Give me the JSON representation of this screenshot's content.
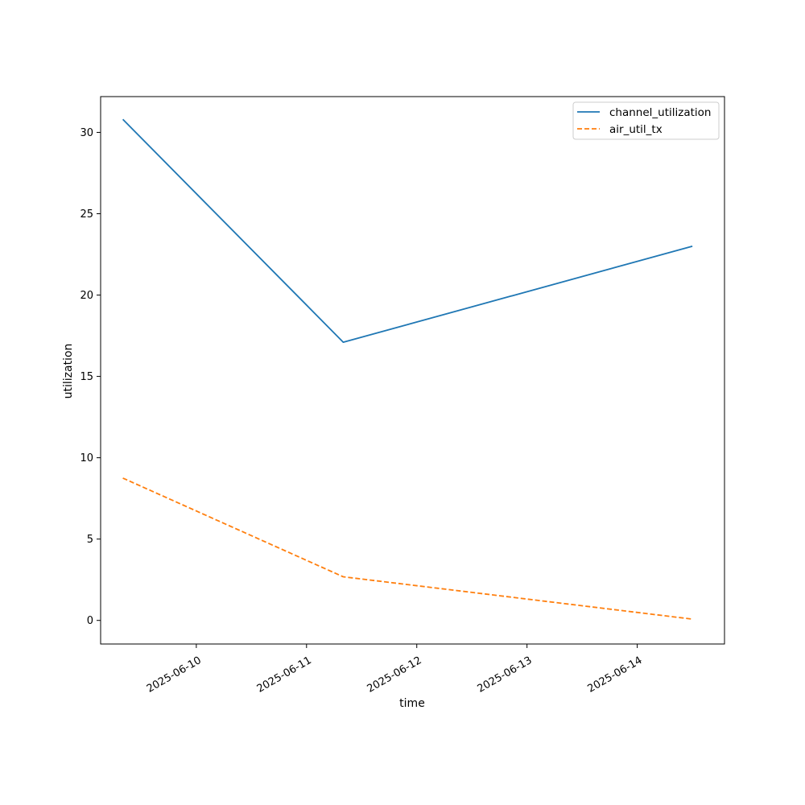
{
  "chart_data": {
    "type": "line",
    "title": "",
    "xlabel": "time",
    "ylabel": "utilization",
    "x_ticks": [
      "2025-06-10",
      "2025-06-11",
      "2025-06-12",
      "2025-06-13",
      "2025-06-14"
    ],
    "y_ticks": [
      0,
      5,
      10,
      15,
      20,
      25,
      30
    ],
    "xlim": [
      "2025-06-09 03:10",
      "2025-06-14 19:00"
    ],
    "ylim": [
      -1.45,
      32.2
    ],
    "grid": false,
    "legend_position": "top-right",
    "series": [
      {
        "name": "channel_utilization",
        "color": "#1f77b4",
        "style": "solid",
        "points": [
          {
            "x": "2025-06-09 08:00",
            "y": 30.8
          },
          {
            "x": "2025-06-11 08:00",
            "y": 17.1
          },
          {
            "x": "2025-06-14 12:00",
            "y": 23.0
          }
        ]
      },
      {
        "name": "air_util_tx",
        "color": "#ff7f0e",
        "style": "dashed",
        "points": [
          {
            "x": "2025-06-09 08:00",
            "y": 8.75
          },
          {
            "x": "2025-06-11 08:00",
            "y": 2.68
          },
          {
            "x": "2025-06-14 12:00",
            "y": 0.08
          }
        ]
      }
    ]
  }
}
